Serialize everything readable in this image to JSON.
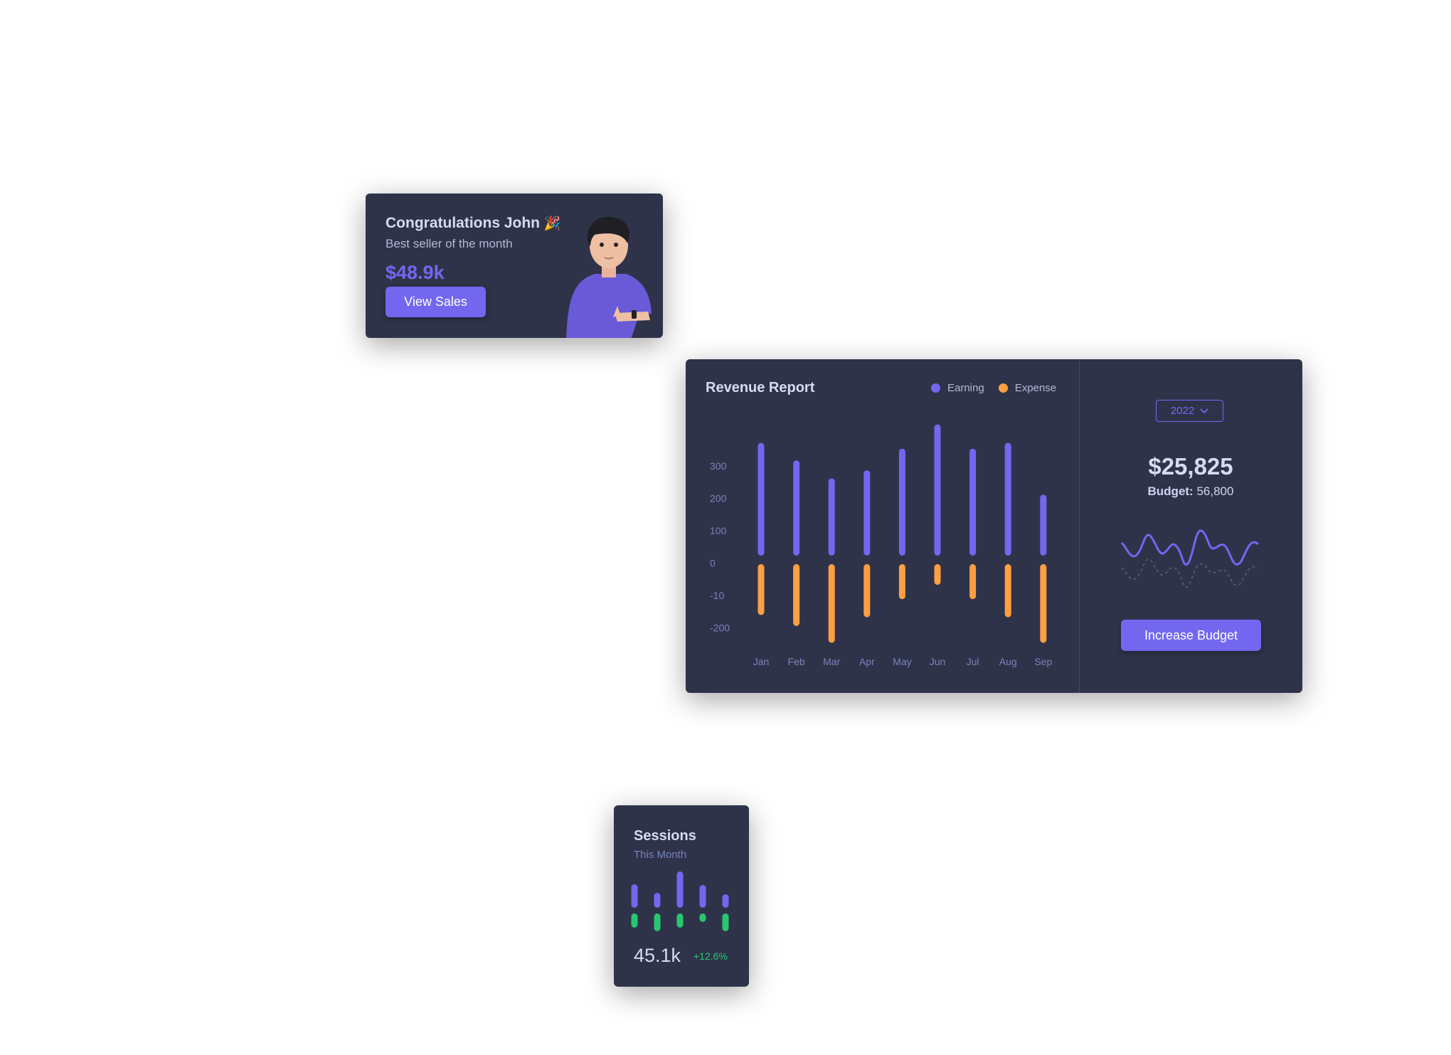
{
  "congrats": {
    "title": "Congratulations John",
    "emoji": "🎉",
    "subtitle": "Best seller of the month",
    "amount": "$48.9k",
    "button_label": "View Sales"
  },
  "revenue": {
    "title": "Revenue Report",
    "legend": [
      {
        "label": "Earning",
        "color": "#7367f0"
      },
      {
        "label": "Expense",
        "color": "#ff9f43"
      }
    ],
    "year_select": "2022",
    "total": "$25,825",
    "budget_label": "Budget:",
    "budget_value": "56,800",
    "button_label": "Increase Budget"
  },
  "chart_data": [
    {
      "type": "bar",
      "title": "Revenue Report",
      "categories": [
        "Jan",
        "Feb",
        "Mar",
        "Apr",
        "May",
        "Jun",
        "Jul",
        "Aug",
        "Sep"
      ],
      "yticks": [
        "300",
        "200",
        "100",
        "0",
        "-10",
        "-200"
      ],
      "ylim": [
        -250,
        360
      ],
      "series": [
        {
          "name": "Earning",
          "color": "#7367f0",
          "values": [
            300,
            246,
            190,
            215,
            282,
            357,
            282,
            300,
            140
          ]
        },
        {
          "name": "Expense",
          "color": "#ff9f43",
          "values": [
            -157,
            -191,
            -243,
            -164,
            -108,
            -64,
            -108,
            -164,
            -243
          ]
        }
      ],
      "grid": false,
      "legend": "top-right"
    },
    {
      "type": "bar",
      "title": "Sessions",
      "series": [
        {
          "color": "#7367f0",
          "values": [
            33,
            21,
            51,
            32,
            19
          ]
        },
        {
          "color": "#28c76f",
          "values": [
            20,
            25,
            20,
            12,
            25
          ]
        }
      ]
    }
  ],
  "sessions": {
    "title": "Sessions",
    "subtitle": "This Month",
    "value": "45.1k",
    "change": "+12.6%",
    "change_color": "#28c76f"
  }
}
